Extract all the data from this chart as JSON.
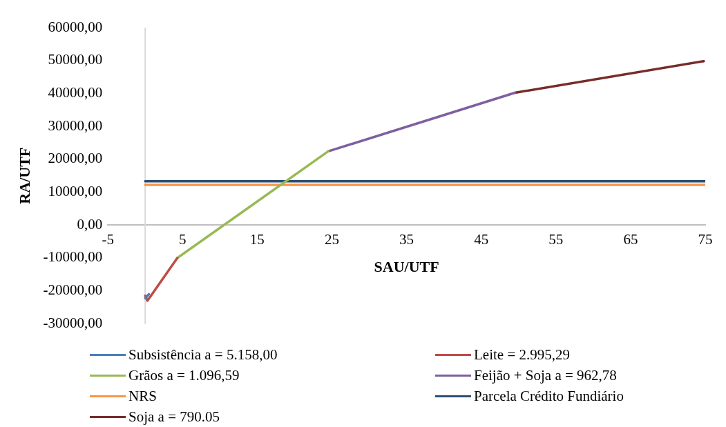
{
  "chart_data": {
    "type": "line",
    "xlabel": "SAU/UTF",
    "ylabel": "RA/UTF",
    "xlim": [
      -5,
      75
    ],
    "xticks": [
      -5,
      5,
      15,
      25,
      35,
      45,
      55,
      65,
      75
    ],
    "ylim": [
      -30000,
      60000
    ],
    "yticks": [
      {
        "value": -30000,
        "label": "-30000,00"
      },
      {
        "value": -20000,
        "label": "-20000,00"
      },
      {
        "value": -10000,
        "label": "-10000,00"
      },
      {
        "value": 0,
        "label": "0,00"
      },
      {
        "value": 10000,
        "label": "10000,00"
      },
      {
        "value": 20000,
        "label": "20000,00"
      },
      {
        "value": 30000,
        "label": "30000,00"
      },
      {
        "value": 40000,
        "label": "40000,00"
      },
      {
        "value": 50000,
        "label": "50000,00"
      },
      {
        "value": 60000,
        "label": "60000,00"
      }
    ],
    "grid": false,
    "legend": "bottom",
    "marker": "none",
    "line_style": "solid",
    "series": [
      {
        "name": "Subsistência a = 5.158,00",
        "color": "#4a7ebb",
        "x": [
          0,
          0.5
        ],
        "values": [
          -22200,
          -21000
        ]
      },
      {
        "name": "Leite = 2.995,29",
        "color": "#be4b48",
        "x": [
          0,
          0.3,
          4.3
        ],
        "values": [
          -21500,
          -23000,
          -10000
        ]
      },
      {
        "name": "Grãos a = 1.096,59",
        "color": "#98b954",
        "x": [
          4.3,
          24.5
        ],
        "values": [
          -10000,
          22400
        ]
      },
      {
        "name": "Feijão + Soja a = 962,78",
        "color": "#7d60a0",
        "x": [
          24.5,
          49.5
        ],
        "values": [
          22400,
          40200
        ]
      },
      {
        "name": "NRS",
        "color": "#f79646",
        "x": [
          0,
          75
        ],
        "values": [
          12200,
          12200
        ]
      },
      {
        "name": "Parcela Crédito Fundiário",
        "color": "#2c4d75",
        "x": [
          0,
          75
        ],
        "values": [
          13300,
          13300
        ]
      },
      {
        "name": "Soja a = 790.05",
        "color": "#772c2a",
        "x": [
          49.5,
          74.8
        ],
        "values": [
          40200,
          49800
        ]
      }
    ]
  }
}
